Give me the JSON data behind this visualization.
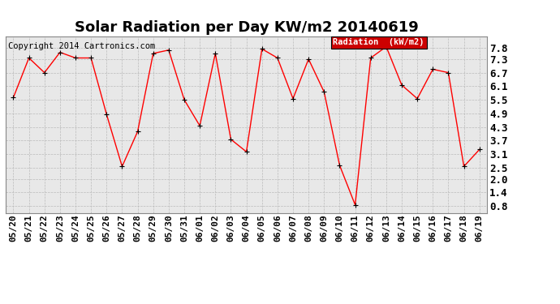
{
  "title": "Solar Radiation per Day KW/m2 20140619",
  "copyright_text": "Copyright 2014 Cartronics.com",
  "legend_label": "Radiation  (kW/m2)",
  "dates": [
    "05/20",
    "05/21",
    "05/22",
    "05/23",
    "05/24",
    "05/25",
    "05/26",
    "05/27",
    "05/28",
    "05/29",
    "05/30",
    "05/31",
    "06/01",
    "06/02",
    "06/03",
    "06/04",
    "06/05",
    "06/06",
    "06/07",
    "06/08",
    "06/09",
    "06/10",
    "06/11",
    "06/12",
    "06/13",
    "06/14",
    "06/15",
    "06/16",
    "06/17",
    "06/18",
    "06/19"
  ],
  "values": [
    5.6,
    7.35,
    6.7,
    7.6,
    7.35,
    7.35,
    4.85,
    2.55,
    4.1,
    7.55,
    7.7,
    5.5,
    4.35,
    7.55,
    3.75,
    3.2,
    7.75,
    7.35,
    5.55,
    7.3,
    5.85,
    2.6,
    0.85,
    7.35,
    7.85,
    6.15,
    5.55,
    6.85,
    6.7,
    2.55,
    3.3
  ],
  "ylim": [
    0.5,
    8.3
  ],
  "yticks": [
    0.8,
    1.4,
    2.0,
    2.5,
    3.1,
    3.7,
    4.3,
    4.9,
    5.5,
    6.1,
    6.7,
    7.3,
    7.8
  ],
  "ytick_labels": [
    "0.8",
    "1.4",
    "2.0",
    "2.5",
    "3.1",
    "3.7",
    "4.3",
    "4.9",
    "5.5",
    "6.1",
    "6.7",
    "7.3",
    "7.8"
  ],
  "line_color": "red",
  "marker_color": "black",
  "grid_color": "#bbbbbb",
  "bg_color": "#ffffff",
  "plot_bg_color": "#e8e8e8",
  "legend_bg": "#cc0000",
  "legend_text_color": "#ffffff",
  "title_fontsize": 13,
  "tick_fontsize": 8,
  "copyright_fontsize": 7.5
}
